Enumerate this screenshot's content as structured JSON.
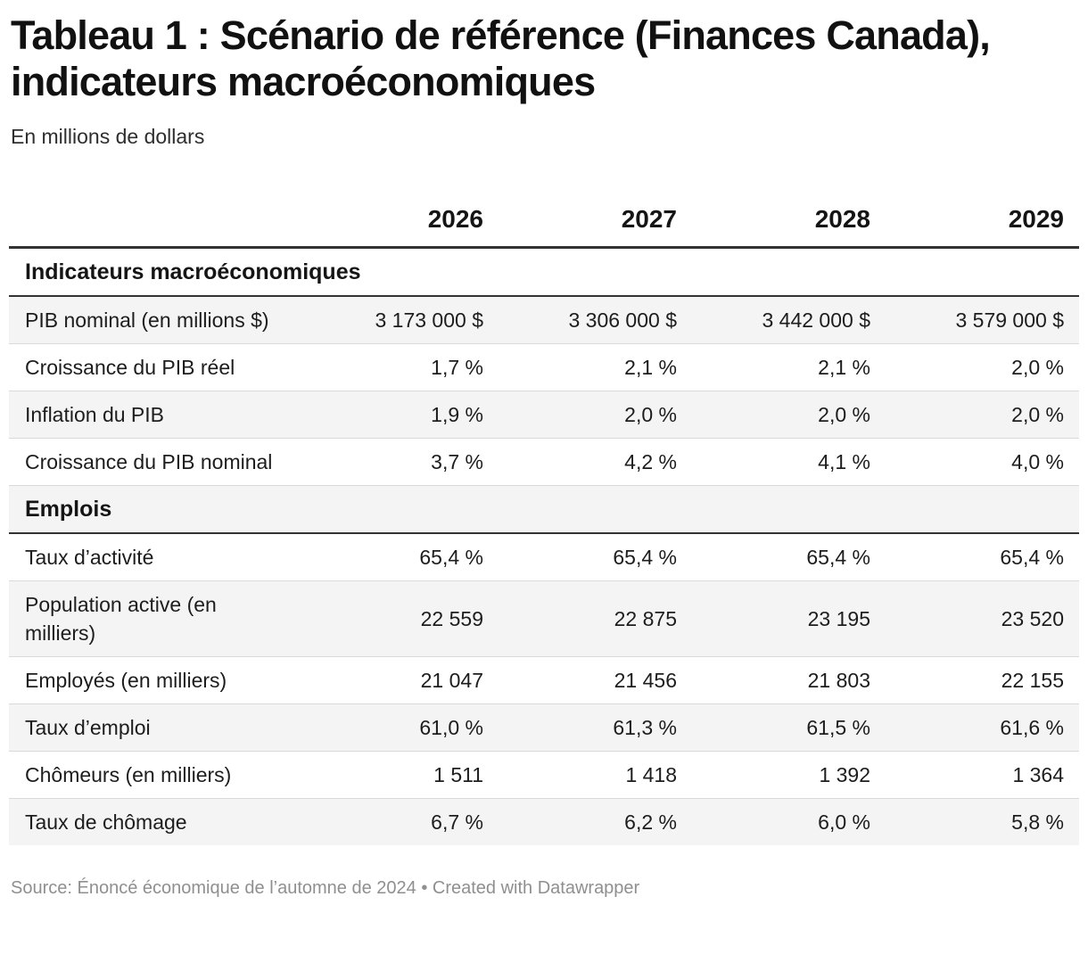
{
  "chart_data": {
    "type": "table",
    "title": "Tableau 1 : Scénario de référence (Finances Canada), indicateurs macroéconomiques",
    "subtitle": "En millions de dollars",
    "columns": [
      "2026",
      "2027",
      "2028",
      "2029"
    ],
    "sections": [
      {
        "header": "Indicateurs macroéconomiques",
        "rows": [
          {
            "label": "PIB nominal (en millions $)",
            "values": [
              "3 173 000 $",
              "3 306 000 $",
              "3 442 000 $",
              "3 579 000 $"
            ]
          },
          {
            "label": "Croissance du PIB réel",
            "values": [
              "1,7 %",
              "2,1 %",
              "2,1 %",
              "2,0 %"
            ]
          },
          {
            "label": "Inflation du PIB",
            "values": [
              "1,9 %",
              "2,0 %",
              "2,0 %",
              "2,0 %"
            ]
          },
          {
            "label": "Croissance du PIB nominal",
            "values": [
              "3,7 %",
              "4,2 %",
              "4,1 %",
              "4,0 %"
            ]
          }
        ]
      },
      {
        "header": "Emplois",
        "rows": [
          {
            "label": "Taux d’activité",
            "values": [
              "65,4 %",
              "65,4 %",
              "65,4 %",
              "65,4 %"
            ]
          },
          {
            "label": "Population active (en milliers)",
            "values": [
              "22 559",
              "22 875",
              "23 195",
              "23 520"
            ]
          },
          {
            "label": "Employés (en milliers)",
            "values": [
              "21 047",
              "21 456",
              "21 803",
              "22 155"
            ]
          },
          {
            "label": "Taux d’emploi",
            "values": [
              "61,0 %",
              "61,3 %",
              "61,5 %",
              "61,6 %"
            ]
          },
          {
            "label": "Chômeurs (en milliers)",
            "values": [
              "1 511",
              "1 418",
              "1 392",
              "1 364"
            ]
          },
          {
            "label": "Taux de chômage",
            "values": [
              "6,7 %",
              "6,2 %",
              "6,0 %",
              "5,8 %"
            ]
          }
        ]
      }
    ],
    "footer": "Source: Énoncé économique de l’automne de 2024 • Created with Datawrapper",
    "layout_hints": {
      "zebra_striping": true,
      "header_border": "3px solid",
      "section_border": "2px solid",
      "value_alignment": "right"
    }
  },
  "colors": {
    "text": "#1d1d1d",
    "title": "#111111",
    "zebra_row": "#f4f4f4",
    "dark_border": "#333333",
    "row_separator": "#d9d9d9",
    "source_text": "#8f8f8f"
  }
}
